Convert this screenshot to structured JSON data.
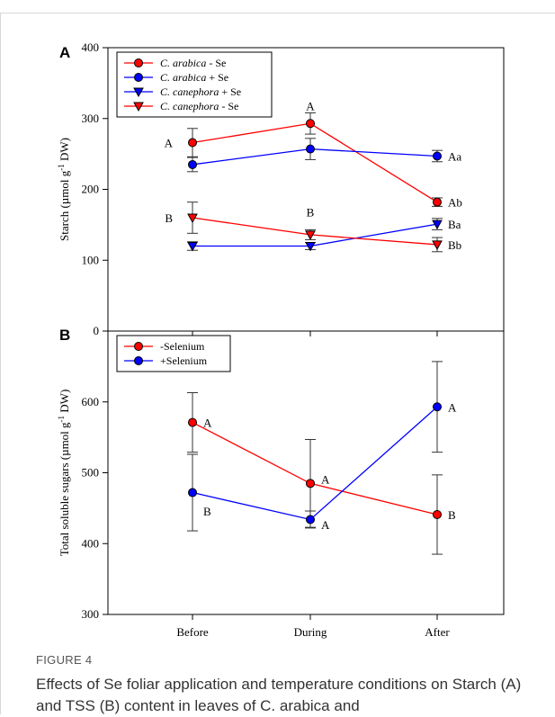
{
  "chart_data": [
    {
      "panel_label": "A",
      "type": "line",
      "ylabel": "Starch (µmol g",
      "ylabel_sup": "-1",
      "ylabel_end": " DW)",
      "ylim": [
        0,
        400
      ],
      "yticks": [
        0,
        100,
        200,
        300,
        400
      ],
      "ytick_labels": [
        "0",
        "100",
        "200",
        "300",
        "400"
      ],
      "x": [
        "Before",
        "During",
        "After"
      ],
      "legend_position": "top-left",
      "series": [
        {
          "name": "C. arabica - Se",
          "name_italic": "C. arabica",
          "name_rest": " - Se",
          "color": "#ff0000",
          "marker": "circle",
          "values": [
            266,
            293,
            182
          ],
          "errors": [
            20,
            15,
            6
          ]
        },
        {
          "name": "C. arabica + Se",
          "name_italic": "C. arabica",
          "name_rest": " + Se",
          "color": "#0000ff",
          "marker": "circle",
          "values": [
            235,
            257,
            247
          ],
          "errors": [
            10,
            15,
            8
          ]
        },
        {
          "name": "C. canephora + Se",
          "name_italic": "C. canephora",
          "name_rest": " + Se",
          "color": "#0000ff",
          "marker": "triangle-down",
          "values": [
            120,
            120,
            151
          ],
          "errors": [
            6,
            5,
            8
          ]
        },
        {
          "name": "C. canephora - Se",
          "name_italic": "C. canephora",
          "name_rest": " - Se",
          "color": "#ff0000",
          "marker": "triangle-down",
          "values": [
            160,
            136,
            122
          ],
          "errors": [
            22,
            7,
            10
          ]
        }
      ],
      "annotations": [
        {
          "text": "A",
          "at": [
            0,
            266
          ],
          "side": "left"
        },
        {
          "text": "A",
          "at": [
            1,
            318
          ],
          "side": "center"
        },
        {
          "text": "Aa",
          "at": [
            2,
            247
          ],
          "side": "right"
        },
        {
          "text": "Ab",
          "at": [
            2,
            182
          ],
          "side": "right"
        },
        {
          "text": "B",
          "at": [
            0,
            160
          ],
          "side": "left"
        },
        {
          "text": "B",
          "at": [
            1,
            168
          ],
          "side": "center"
        },
        {
          "text": "Ba",
          "at": [
            2,
            151
          ],
          "side": "right"
        },
        {
          "text": "Bb",
          "at": [
            2,
            122
          ],
          "side": "right"
        }
      ]
    },
    {
      "panel_label": "B",
      "type": "line",
      "ylabel": "Total soluble sugars (µmol g",
      "ylabel_sup": "-1",
      "ylabel_end": " DW)",
      "ylim": [
        300,
        700
      ],
      "yticks": [
        300,
        400,
        500,
        600
      ],
      "ytick_labels": [
        "300",
        "400",
        "500",
        "600"
      ],
      "x": [
        "Before",
        "During",
        "After"
      ],
      "xtick_labels": [
        "Before",
        "During",
        "After"
      ],
      "legend_position": "top-left",
      "series": [
        {
          "name": "-Selenium",
          "color": "#ff0000",
          "marker": "circle",
          "values": [
            571,
            485,
            441
          ],
          "errors": [
            42,
            62,
            56
          ]
        },
        {
          "name": "+Selenium",
          "color": "#0000ff",
          "marker": "circle",
          "values": [
            472,
            434,
            593
          ],
          "errors": [
            54,
            12,
            64
          ]
        }
      ],
      "annotations": [
        {
          "text": "A",
          "at": [
            0,
            571
          ],
          "side": "right"
        },
        {
          "text": "B",
          "at": [
            0,
            446
          ],
          "side": "right"
        },
        {
          "text": "A",
          "at": [
            1,
            491
          ],
          "side": "right"
        },
        {
          "text": "A",
          "at": [
            1,
            427
          ],
          "side": "right"
        },
        {
          "text": "A",
          "at": [
            2,
            593
          ],
          "side": "right"
        },
        {
          "text": "B",
          "at": [
            2,
            441
          ],
          "side": "right"
        }
      ]
    }
  ],
  "caption": {
    "label": "FIGURE 4",
    "text": "Effects of Se foliar application and temperature conditions on Starch (A) and TSS (B) content in leaves of C. arabica and"
  }
}
